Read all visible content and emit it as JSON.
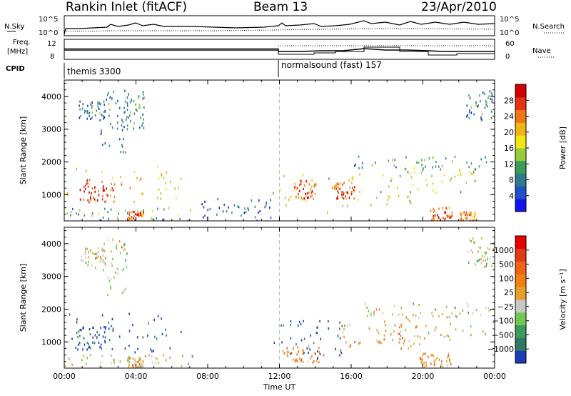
{
  "header": {
    "station": "Rankin Inlet (fitACF)",
    "beam": "Beam 13",
    "date": "23/Apr/2010"
  },
  "top_panels": {
    "nsky_label": "N.Sky",
    "nsearch_label": "N.Search",
    "noise_ticks": [
      "10^5",
      "10^0"
    ],
    "freq_label_1": "Freq.",
    "freq_label_2": "[MHz]",
    "freq_ticks": [
      "12",
      "8"
    ],
    "nave_ticks": [
      "60",
      "0"
    ],
    "nave_label": "Nave",
    "cpid_label": "CPID",
    "cpid_segments": [
      {
        "start_h": 0,
        "label": "themis 3300"
      },
      {
        "start_h": 12,
        "label": "normalsound (fast) 157"
      }
    ]
  },
  "chart_data": [
    {
      "type": "heatmap",
      "name": "power",
      "xlabel": "",
      "ylabel": "Slant Range [km]",
      "xlim": [
        0,
        24
      ],
      "ylim": [
        200,
        4500
      ],
      "yticks": [
        1000,
        2000,
        3000,
        4000
      ],
      "colorbar": {
        "label": "Power [dB]",
        "ticks": [
          "4",
          "8",
          "12",
          "16",
          "20",
          "24",
          "28"
        ],
        "colors": [
          "#1414f0",
          "#2050c8",
          "#2e7a8c",
          "#3c9a5a",
          "#96cc3c",
          "#f0e614",
          "#f0b414",
          "#f07814",
          "#e63214",
          "#d20000"
        ]
      },
      "regions": [
        {
          "t": [
            0.1,
            6.5
          ],
          "r": [
            700,
            1900
          ],
          "level": 0.65
        },
        {
          "t": [
            0.6,
            2.8
          ],
          "r": [
            800,
            1500
          ],
          "level": 0.9
        },
        {
          "t": [
            3.5,
            4.4
          ],
          "r": [
            250,
            550
          ],
          "level": 0.85
        },
        {
          "t": [
            0.8,
            2.3
          ],
          "r": [
            3300,
            3900
          ],
          "level": 0.3
        },
        {
          "t": [
            2.0,
            3.5
          ],
          "r": [
            2300,
            4200
          ],
          "level": 0.3
        },
        {
          "t": [
            3.2,
            4.5
          ],
          "r": [
            3000,
            4300
          ],
          "level": 0.3
        },
        {
          "t": [
            0,
            7.5
          ],
          "r": [
            200,
            650
          ],
          "level": 0.4
        },
        {
          "t": [
            7.5,
            11.6
          ],
          "r": [
            200,
            900
          ],
          "level": 0.2
        },
        {
          "t": [
            11.6,
            19.8
          ],
          "r": [
            400,
            1700
          ],
          "level": 0.6
        },
        {
          "t": [
            12.8,
            14.0
          ],
          "r": [
            900,
            1500
          ],
          "level": 0.85
        },
        {
          "t": [
            15.0,
            16.2
          ],
          "r": [
            900,
            1400
          ],
          "level": 0.85
        },
        {
          "t": [
            17.6,
            24.0
          ],
          "r": [
            1100,
            1900
          ],
          "level": 0.5
        },
        {
          "t": [
            20.4,
            21.6
          ],
          "r": [
            200,
            650
          ],
          "level": 0.85
        },
        {
          "t": [
            22.0,
            22.9
          ],
          "r": [
            200,
            500
          ],
          "level": 0.8
        },
        {
          "t": [
            16.0,
            24.0
          ],
          "r": [
            1800,
            2200
          ],
          "level": 0.35
        },
        {
          "t": [
            22.4,
            24.0
          ],
          "r": [
            3300,
            4200
          ],
          "level": 0.3
        }
      ]
    },
    {
      "type": "heatmap",
      "name": "velocity",
      "xlabel": "Time UT",
      "ylabel": "Slant Range [km]",
      "xlim": [
        0,
        24
      ],
      "ylim": [
        200,
        4500
      ],
      "xticks": [
        "00:00",
        "04:00",
        "08:00",
        "12:00",
        "16:00",
        "20:00",
        "00:00"
      ],
      "yticks": [
        1000,
        2000,
        3000,
        4000
      ],
      "colorbar": {
        "label": "Velocity [m s⁻¹]",
        "ticks": [
          "1000",
          "500",
          "100",
          "25",
          "−25",
          "−100",
          "−500",
          "−1000"
        ],
        "colors": [
          "#1a3cb4",
          "#2e7a64",
          "#3c9a5a",
          "#70c850",
          "#c8c8c8",
          "#e6a028",
          "#f08214",
          "#f06414",
          "#e03c14",
          "#e60000"
        ]
      },
      "regions": [
        {
          "t": [
            0.1,
            6.5
          ],
          "r": [
            700,
            1900
          ],
          "level": 0.05
        },
        {
          "t": [
            0.6,
            2.8
          ],
          "r": [
            800,
            1500
          ],
          "level": 0.0
        },
        {
          "t": [
            3.5,
            4.4
          ],
          "r": [
            250,
            550
          ],
          "level": 0.55
        },
        {
          "t": [
            0.8,
            2.3
          ],
          "r": [
            3300,
            3900
          ],
          "level": 0.45
        },
        {
          "t": [
            2.0,
            3.5
          ],
          "r": [
            2300,
            4200
          ],
          "level": 0.45
        },
        {
          "t": [
            0,
            7.5
          ],
          "r": [
            200,
            650
          ],
          "level": 0.45
        },
        {
          "t": [
            11.6,
            15.5
          ],
          "r": [
            500,
            1700
          ],
          "level": 0.05
        },
        {
          "t": [
            12.0,
            14.5
          ],
          "r": [
            400,
            900
          ],
          "level": 0.65
        },
        {
          "t": [
            15.5,
            19.8
          ],
          "r": [
            800,
            1600
          ],
          "level": 0.65
        },
        {
          "t": [
            17.6,
            24.0
          ],
          "r": [
            1100,
            1900
          ],
          "level": 0.5
        },
        {
          "t": [
            19.8,
            21.6
          ],
          "r": [
            200,
            700
          ],
          "level": 0.6
        },
        {
          "t": [
            16.0,
            24.0
          ],
          "r": [
            1800,
            2200
          ],
          "level": 0.45
        },
        {
          "t": [
            22.4,
            24.0
          ],
          "r": [
            3300,
            4200
          ],
          "level": 0.45
        }
      ]
    }
  ]
}
